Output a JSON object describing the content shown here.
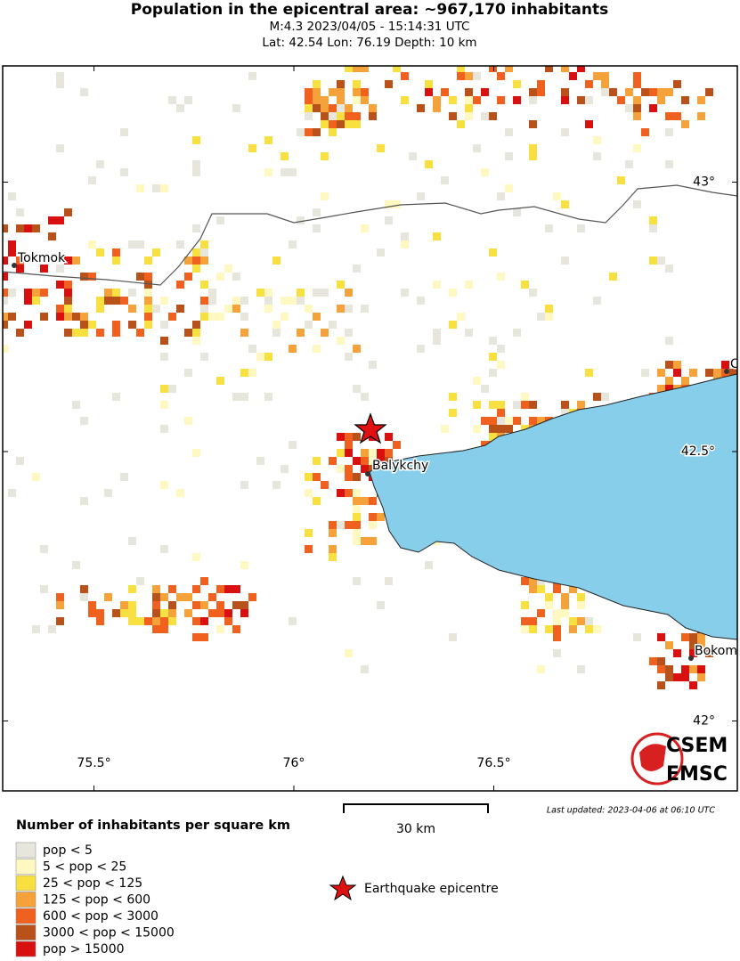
{
  "header": {
    "title": "Population in the epicentral area: ~967,170 inhabitants",
    "line1": "M:4.3 2023/04/05 - 15:14:31 UTC",
    "line2": "Lat: 42.54 Lon: 76.19 Depth: 10 km"
  },
  "map": {
    "lon_ticks": [
      {
        "value": 75.5,
        "label": "75.5°"
      },
      {
        "value": 76,
        "label": "76°"
      },
      {
        "value": 76.5,
        "label": "76.5°"
      }
    ],
    "lat_ticks": [
      {
        "value": 43,
        "label": "43°"
      },
      {
        "value": 42.5,
        "label": "42.5°"
      },
      {
        "value": 42,
        "label": "42°"
      }
    ],
    "places": [
      "Tokmok",
      "Balykchy",
      "C",
      "Bokom"
    ]
  },
  "scale_bar": "30 km",
  "last_updated": "Last updated: 2023-04-06 at 06:10 UTC",
  "logo": {
    "top": "CSEM",
    "bottom": "EMSC"
  },
  "legend": {
    "title": "Number of inhabitants per square km",
    "items": [
      {
        "label": "pop < 5",
        "color": "#e6e6dc"
      },
      {
        "label": "5 < pop < 25",
        "color": "#fff8c0"
      },
      {
        "label": "25 < pop < 125",
        "color": "#f8e040"
      },
      {
        "label": "125 < pop < 600",
        "color": "#f5a23a"
      },
      {
        "label": "600 < pop < 3000",
        "color": "#f0601e"
      },
      {
        "label": "3000 < pop < 15000",
        "color": "#b9511a"
      },
      {
        "label": "pop > 15000",
        "color": "#d81010"
      }
    ],
    "epicentre": "Earthquake epicentre"
  }
}
